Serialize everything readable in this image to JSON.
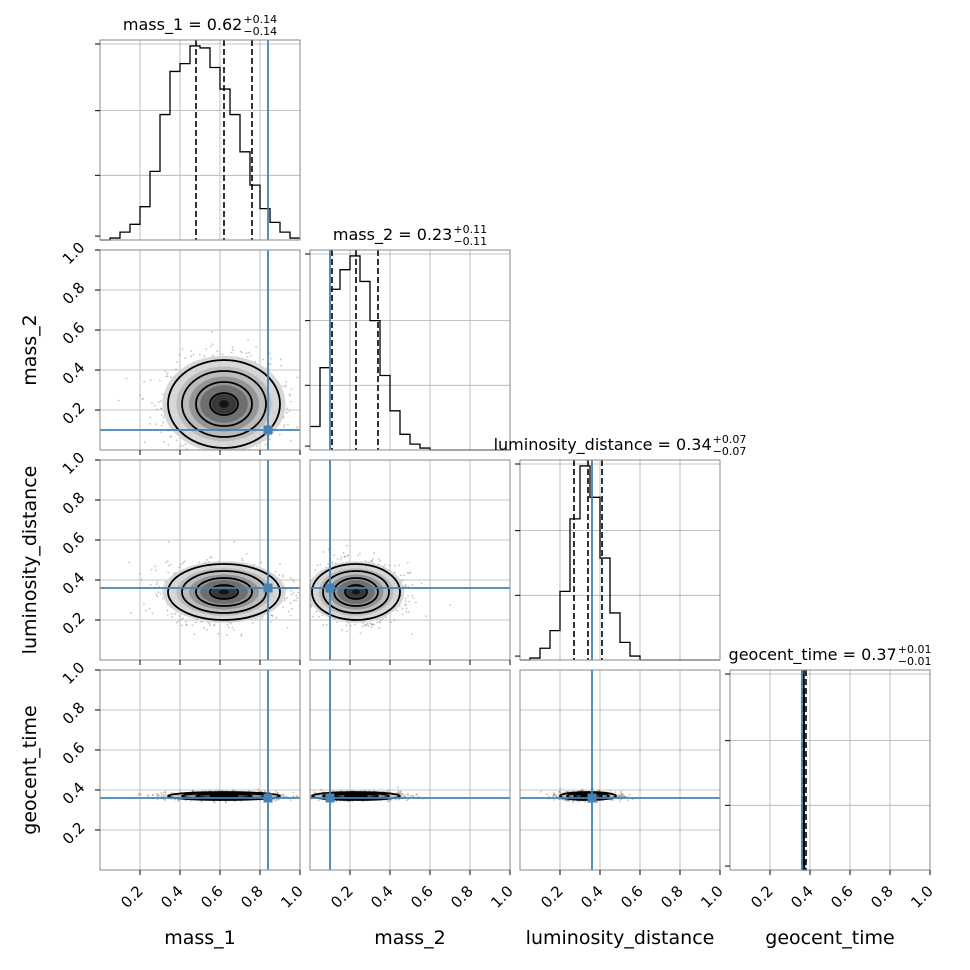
{
  "chart_data": {
    "type": "corner",
    "parameters": [
      "mass_1",
      "mass_2",
      "luminosity_distance",
      "geocent_time"
    ],
    "axis_range": [
      0,
      1
    ],
    "tick_values": [
      0.2,
      0.4,
      0.6,
      0.8,
      1.0
    ],
    "tick_labels": [
      "0.2",
      "0.4",
      "0.6",
      "0.8",
      "1.0"
    ],
    "grid": true,
    "truth_color": "#4682b4",
    "truths": [
      0.84,
      0.1,
      0.36,
      0.36
    ],
    "titles": [
      {
        "name": "mass_1",
        "median": "0.62",
        "upper": "+0.14",
        "lower": "−0.14"
      },
      {
        "name": "mass_2",
        "median": "0.23",
        "upper": "+0.11",
        "lower": "−0.11"
      },
      {
        "name": "luminosity_distance",
        "median": "0.34",
        "upper": "+0.07",
        "lower": "−0.07"
      },
      {
        "name": "geocent_time",
        "median": "0.37",
        "upper": "+0.01",
        "lower": "−0.01"
      }
    ],
    "histograms": [
      {
        "param": "mass_1",
        "bins": 20,
        "quantiles": [
          0.48,
          0.62,
          0.76
        ],
        "counts": [
          0.0,
          0.01,
          0.04,
          0.08,
          0.17,
          0.35,
          0.64,
          0.86,
          0.9,
          0.99,
          0.98,
          0.88,
          0.77,
          0.64,
          0.45,
          0.28,
          0.16,
          0.09,
          0.04,
          0.01
        ]
      },
      {
        "param": "mass_2",
        "bins": 20,
        "quantiles": [
          0.11,
          0.23,
          0.34
        ],
        "counts": [
          0.12,
          0.42,
          0.82,
          0.92,
          0.99,
          0.86,
          0.66,
          0.38,
          0.2,
          0.08,
          0.03,
          0.01,
          0.0,
          0.0,
          0.0,
          0.0,
          0.0,
          0.0,
          0.0,
          0.0
        ]
      },
      {
        "param": "luminosity_distance",
        "bins": 20,
        "quantiles": [
          0.27,
          0.34,
          0.41
        ],
        "counts": [
          0.0,
          0.01,
          0.06,
          0.15,
          0.35,
          0.72,
          0.99,
          0.83,
          0.52,
          0.24,
          0.09,
          0.02,
          0.0,
          0.0,
          0.0,
          0.0,
          0.0,
          0.0,
          0.0,
          0.0
        ]
      },
      {
        "param": "geocent_time",
        "bins": 20,
        "quantiles": [
          0.36,
          0.37,
          0.38
        ],
        "counts": [
          0.0,
          0.0,
          0.0,
          0.0,
          0.0,
          0.0,
          0.0,
          0.04,
          0.3,
          0.99,
          0.92,
          0.05,
          0.0,
          0.0,
          0.0,
          0.0,
          0.0,
          0.0,
          0.0,
          0.0
        ],
        "bin_range": [
          0.355,
          0.385
        ]
      }
    ],
    "contours": [
      {
        "x": "mass_1",
        "y": "mass_2",
        "center": [
          0.62,
          0.23
        ],
        "sigma": [
          0.14,
          0.11
        ]
      },
      {
        "x": "mass_1",
        "y": "luminosity_distance",
        "center": [
          0.62,
          0.34
        ],
        "sigma": [
          0.14,
          0.07
        ]
      },
      {
        "x": "mass_2",
        "y": "luminosity_distance",
        "center": [
          0.23,
          0.34
        ],
        "sigma": [
          0.11,
          0.07
        ]
      },
      {
        "x": "mass_1",
        "y": "geocent_time",
        "center": [
          0.62,
          0.37
        ],
        "sigma": [
          0.14,
          0.01
        ]
      },
      {
        "x": "mass_2",
        "y": "geocent_time",
        "center": [
          0.23,
          0.37
        ],
        "sigma": [
          0.11,
          0.01
        ]
      },
      {
        "x": "luminosity_distance",
        "y": "geocent_time",
        "center": [
          0.34,
          0.37
        ],
        "sigma": [
          0.07,
          0.01
        ]
      }
    ]
  }
}
